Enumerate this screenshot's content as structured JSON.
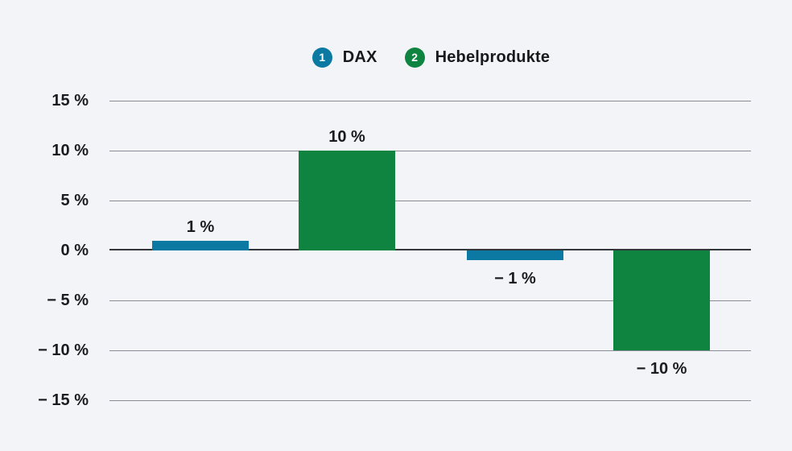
{
  "page": {
    "background": "#f3f4f8"
  },
  "legend": {
    "items": [
      {
        "number": "1",
        "label": "DAX",
        "color": "#0b79a1"
      },
      {
        "number": "2",
        "label": "Hebelprodukte",
        "color": "#0e8440"
      }
    ]
  },
  "chart_data": {
    "type": "bar",
    "title": "",
    "xlabel": "",
    "ylabel": "",
    "unit": "%",
    "ylim": [
      -15,
      15
    ],
    "grid": true,
    "legend_position": "top-center",
    "legend_entries": [
      "DAX",
      "Hebelprodukte"
    ],
    "series_colors": {
      "DAX": "#0b79a1",
      "Hebelprodukte": "#0e8440"
    },
    "bars": [
      {
        "series": "DAX",
        "value": 1,
        "label": "1 %"
      },
      {
        "series": "Hebelprodukte",
        "value": 10,
        "label": "10 %"
      },
      {
        "series": "DAX",
        "value": -1,
        "label": "− 1 %"
      },
      {
        "series": "Hebelprodukte",
        "value": -10,
        "label": "− 10 %"
      }
    ],
    "y_axis": {
      "ticks": [
        {
          "value": 15,
          "label": "15 %"
        },
        {
          "value": 10,
          "label": "10 %"
        },
        {
          "value": 5,
          "label": "5 %"
        },
        {
          "value": 0,
          "label": "0 %"
        },
        {
          "value": -5,
          "label": "− 5 %"
        },
        {
          "value": -10,
          "label": "− 10 %"
        },
        {
          "value": -15,
          "label": "− 15 %"
        }
      ]
    }
  }
}
